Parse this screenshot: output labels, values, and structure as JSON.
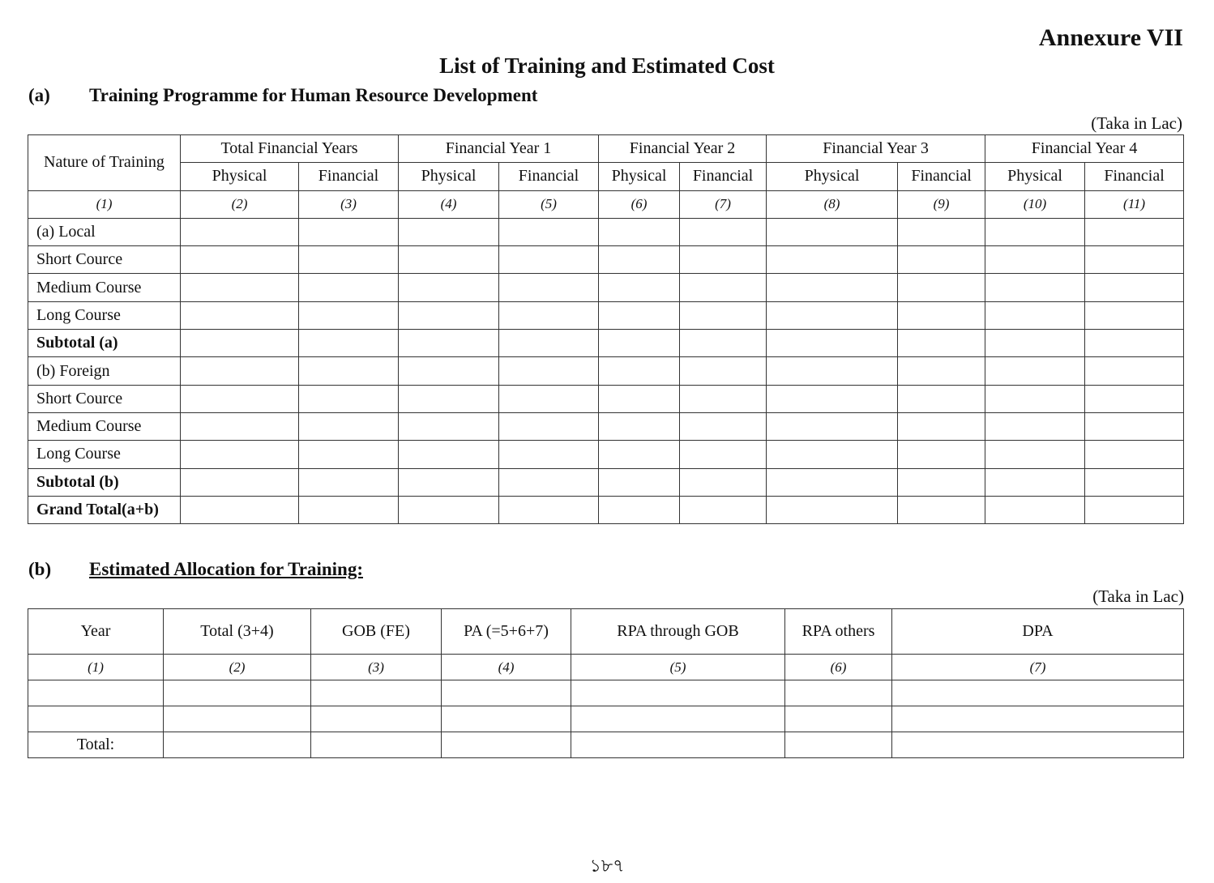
{
  "annexure": "Annexure VII",
  "title": "List of Training and Estimated Cost",
  "section_a": {
    "label": "(a)",
    "title": "Training Programme for Human Resource Development",
    "unit": "(Taka in Lac)",
    "header_first": "Nature of Training",
    "groups": [
      "Total Financial Years",
      "Financial Year 1",
      "Financial Year 2",
      "Financial Year 3",
      "Financial Year 4"
    ],
    "sub": [
      "Physical",
      "Financial"
    ],
    "col_numbers": [
      "(1)",
      "(2)",
      "(3)",
      "(4)",
      "(5)",
      "(6)",
      "(7)",
      "(8)",
      "(9)",
      "(10)",
      "(11)"
    ],
    "rows": [
      {
        "label": "(a) Local",
        "bold": false
      },
      {
        "label": "Short Cource",
        "bold": false
      },
      {
        "label": "Medium Course",
        "bold": false
      },
      {
        "label": "Long Course",
        "bold": false
      },
      {
        "label": "Subtotal (a)",
        "bold": true
      },
      {
        "label": "(b) Foreign",
        "bold": false
      },
      {
        "label": "Short Cource",
        "bold": false
      },
      {
        "label": "Medium Course",
        "bold": false
      },
      {
        "label": "Long Course",
        "bold": false
      },
      {
        "label": "Subtotal (b)",
        "bold": true
      },
      {
        "label": "Grand Total(a+b)",
        "bold": true
      }
    ]
  },
  "section_b": {
    "label": "(b)",
    "title": "Estimated Allocation for Training:",
    "unit": "(Taka in Lac)",
    "headers": [
      "Year",
      "Total (3+4)",
      "GOB (FE)",
      "PA (=5+6+7)",
      "RPA through GOB",
      "RPA others",
      "DPA"
    ],
    "col_numbers": [
      "(1)",
      "(2)",
      "(3)",
      "(4)",
      "(5)",
      "(6)",
      "(7)"
    ],
    "total_label": "Total:"
  },
  "page_number": "১৮৭"
}
